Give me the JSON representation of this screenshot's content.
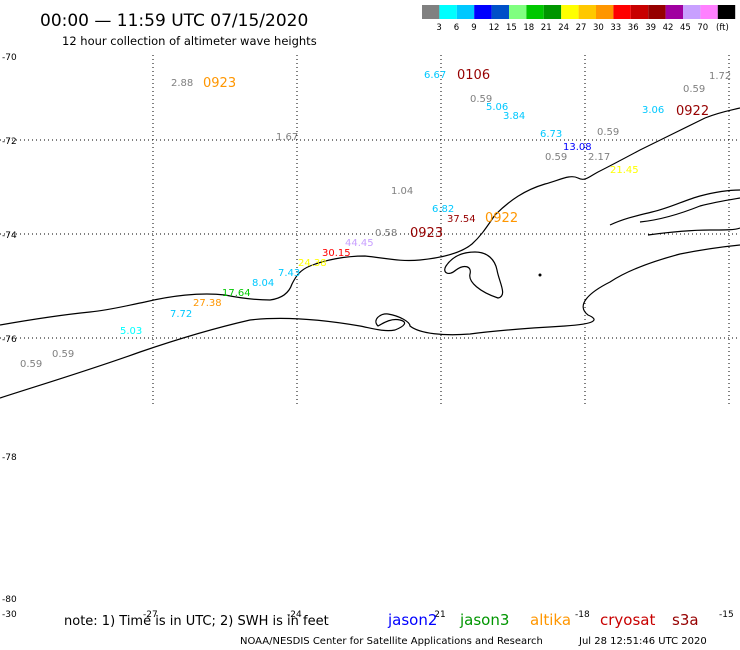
{
  "header": {
    "title": "00:00 — 11:59 UTC 07/15/2020",
    "subtitle": "12 hour collection of altimeter wave heights"
  },
  "color_scale": {
    "colors": [
      "#808080",
      "#00ffff",
      "#00c8ff",
      "#0000ff",
      "#0050c8",
      "#80ff80",
      "#00c800",
      "#009600",
      "#ffff00",
      "#ffc800",
      "#ff9600",
      "#ff0000",
      "#c80000",
      "#960000",
      "#a000a0",
      "#c8a0ff",
      "#ff80ff",
      "#000000"
    ],
    "ticks": [
      "3",
      "6",
      "9",
      "12",
      "15",
      "18",
      "21",
      "24",
      "27",
      "30",
      "33",
      "36",
      "39",
      "42",
      "45",
      "70"
    ],
    "unit": "(ft)"
  },
  "axes": {
    "lat_labels": [
      "-70",
      "-72",
      "-74",
      "-76",
      "-78",
      "-80"
    ],
    "lon_labels": [
      "-30",
      "-27",
      "-24",
      "-21",
      "-18",
      "-15"
    ]
  },
  "observations": [
    {
      "text": "2.88",
      "color": "#808080"
    },
    {
      "text": "6.67",
      "color": "#00c8ff"
    },
    {
      "text": "0.59",
      "color": "#808080"
    },
    {
      "text": "1.72",
      "color": "#808080"
    },
    {
      "text": "0.59",
      "color": "#808080"
    },
    {
      "text": "5.06",
      "color": "#00c8ff"
    },
    {
      "text": "3.84",
      "color": "#00c8ff"
    },
    {
      "text": "3.06",
      "color": "#00c8ff"
    },
    {
      "text": "1.67",
      "color": "#808080"
    },
    {
      "text": "6.73",
      "color": "#00c8ff"
    },
    {
      "text": "0.59",
      "color": "#808080"
    },
    {
      "text": "13.08",
      "color": "#0000ff"
    },
    {
      "text": "0.59",
      "color": "#808080"
    },
    {
      "text": "2.17",
      "color": "#808080"
    },
    {
      "text": "21.45",
      "color": "#ffff00"
    },
    {
      "text": "1.04",
      "color": "#808080"
    },
    {
      "text": "6.82",
      "color": "#00c8ff"
    },
    {
      "text": "37.54",
      "color": "#960000"
    },
    {
      "text": "0.58",
      "color": "#808080"
    },
    {
      "text": "44.45",
      "color": "#c8a0ff"
    },
    {
      "text": "30.15",
      "color": "#ff0000"
    },
    {
      "text": "24.38",
      "color": "#ffff00"
    },
    {
      "text": "7.43",
      "color": "#00c8ff"
    },
    {
      "text": "8.04",
      "color": "#00c8ff"
    },
    {
      "text": "17.64",
      "color": "#00c800"
    },
    {
      "text": "27.38",
      "color": "#ff9600"
    },
    {
      "text": "7.72",
      "color": "#00c8ff"
    },
    {
      "text": "5.03",
      "color": "#00ffff"
    },
    {
      "text": "0.59",
      "color": "#808080"
    },
    {
      "text": "0.59",
      "color": "#808080"
    }
  ],
  "time_tags": [
    {
      "text": "0923",
      "color": "#ff9600"
    },
    {
      "text": "0106",
      "color": "#960000"
    },
    {
      "text": "0922",
      "color": "#960000"
    },
    {
      "text": "0922",
      "color": "#ff9600"
    },
    {
      "text": "0923",
      "color": "#960000"
    }
  ],
  "footer": {
    "note": "note: 1) Time is in UTC; 2) SWH is in feet",
    "missions": [
      {
        "name": "jason2",
        "color": "#0000ff"
      },
      {
        "name": "jason3",
        "color": "#009600"
      },
      {
        "name": "altika",
        "color": "#ff9600"
      },
      {
        "name": "cryosat",
        "color": "#c80000"
      },
      {
        "name": "s3a",
        "color": "#960000"
      }
    ],
    "credit": "NOAA/NESDIS Center for Satellite Applications and Research",
    "timestamp": "Jul 28 12:51:46 UTC 2020"
  }
}
